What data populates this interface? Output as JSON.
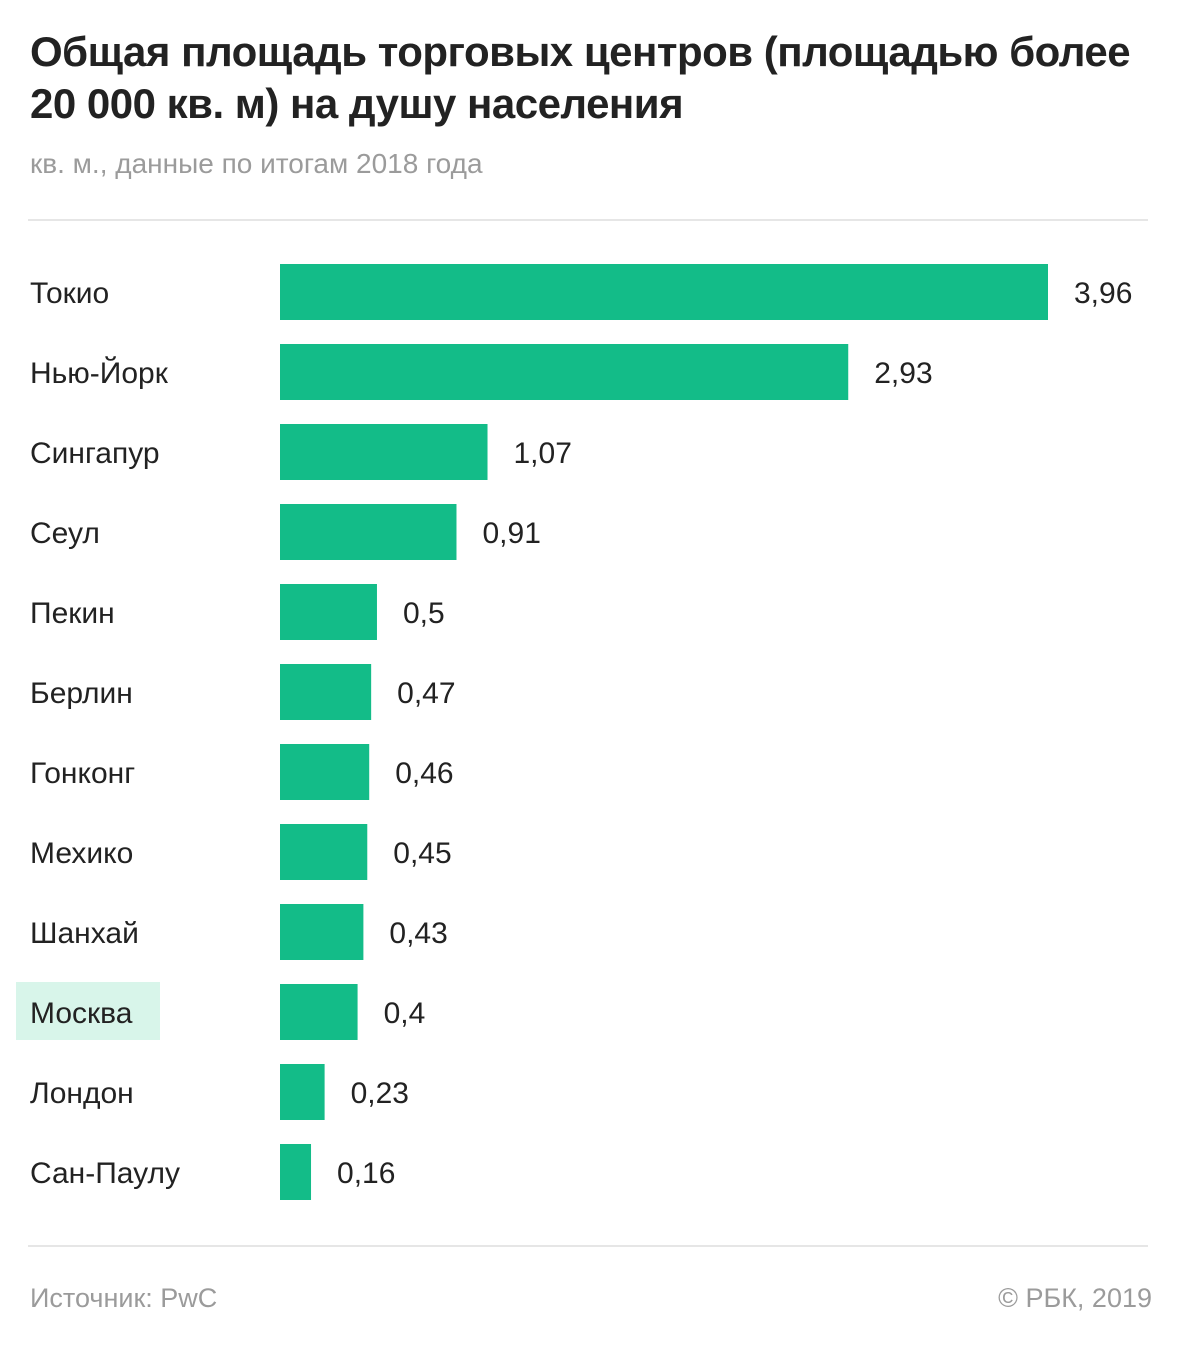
{
  "chart_data": {
    "type": "bar",
    "orientation": "horizontal",
    "title": "Общая площадь торговых центров (площадью более 20 000 кв. м) на душу населения",
    "subtitle": "кв. м., данные по итогам 2018 года",
    "categories": [
      "Токио",
      "Нью-Йорк",
      "Сингапур",
      "Сеул",
      "Пекин",
      "Берлин",
      "Гонконг",
      "Мехико",
      "Шанхай",
      "Москва",
      "Лондон",
      "Сан-Паулу"
    ],
    "values": [
      3.96,
      2.93,
      1.07,
      0.91,
      0.5,
      0.47,
      0.46,
      0.45,
      0.43,
      0.4,
      0.23,
      0.16
    ],
    "value_labels": [
      "3,96",
      "2,93",
      "1,07",
      "0,91",
      "0,5",
      "0,47",
      "0,46",
      "0,45",
      "0,43",
      "0,4",
      "0,23",
      "0,16"
    ],
    "highlighted_category": "Москва",
    "xlim": [
      0,
      3.96
    ],
    "grid": false,
    "legend": "none",
    "bar_color": "#13bc88",
    "highlight_color": "#d8f5ea"
  },
  "footer": {
    "source": "Источник: PwC",
    "copyright": "© РБК, 2019"
  }
}
